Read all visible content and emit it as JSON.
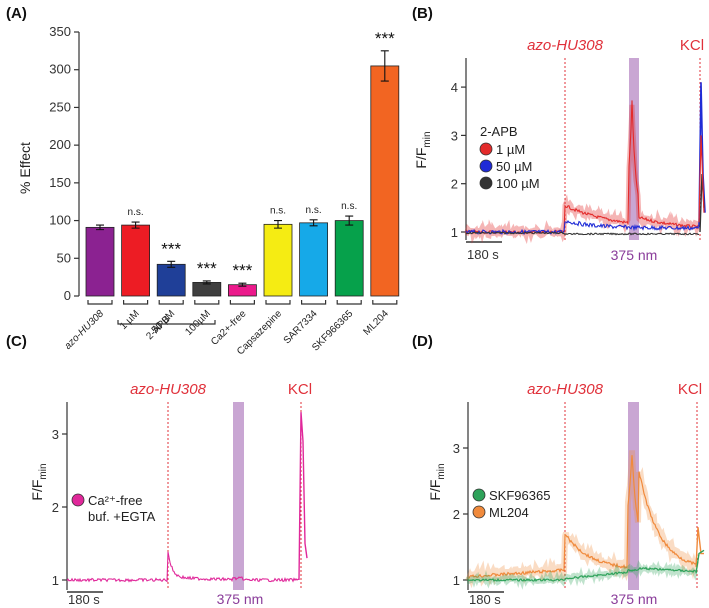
{
  "chart_data": [
    {
      "panel": "(A)",
      "type": "bar",
      "ylabel": "% Effect",
      "ylim": [
        0,
        350
      ],
      "yticks": [
        0,
        50,
        100,
        150,
        200,
        250,
        300,
        350
      ],
      "categories": [
        "azo-HU308",
        "1 µM",
        "50 µM",
        "100µM",
        "Ca2+-free",
        "Capsazepine",
        "SAR7334",
        "SKF966365",
        "ML204"
      ],
      "group_label": "2-APB",
      "values": [
        91,
        94,
        42,
        18,
        15,
        95,
        97,
        100,
        305
      ],
      "errors": [
        3,
        4,
        4,
        2,
        2,
        5,
        4,
        6,
        20
      ],
      "colors": [
        "#8b2291",
        "#ed1c24",
        "#1f3f98",
        "#3f3f3f",
        "#ec1a8c",
        "#f5ec13",
        "#16a9e8",
        "#06a14b",
        "#f26522"
      ],
      "significance": [
        "",
        "n.s.",
        "***",
        "***",
        "***",
        "n.s.",
        "n.s.",
        "n.s.",
        "***"
      ]
    },
    {
      "panel": "(B)",
      "type": "line",
      "ylabel": "F/F",
      "ylabel_sub": "min",
      "yticks": [
        1,
        2,
        3,
        4
      ],
      "stimulus_1": "azo-HU308",
      "stimulus_2": "KCl",
      "light": "375 nm",
      "scalebar": "180 s",
      "legend_title": "2-APB",
      "series": [
        {
          "name": "1 µM",
          "color": "#e32b2b"
        },
        {
          "name": "50 µM",
          "color": "#1f2bd6"
        },
        {
          "name": "100 µM",
          "color": "#333333"
        }
      ]
    },
    {
      "panel": "(C)",
      "type": "line",
      "ylabel": "F/F",
      "ylabel_sub": "min",
      "yticks": [
        1,
        2,
        3
      ],
      "stimulus_1": "azo-HU308",
      "stimulus_2": "KCl",
      "light": "375 nm",
      "scalebar": "180 s",
      "series": [
        {
          "name_line1": "Ca²⁺-free",
          "name_line2": "buf. +EGTA",
          "color": "#e0289a"
        }
      ]
    },
    {
      "panel": "(D)",
      "type": "line",
      "ylabel": "F/F",
      "ylabel_sub": "min",
      "yticks": [
        1,
        2,
        3
      ],
      "stimulus_1": "azo-HU308",
      "stimulus_2": "KCl",
      "light": "375 nm",
      "scalebar": "180 s",
      "series": [
        {
          "name": "SKF96365",
          "color": "#2ea25a"
        },
        {
          "name": "ML204",
          "color": "#f08a3c"
        }
      ]
    }
  ]
}
